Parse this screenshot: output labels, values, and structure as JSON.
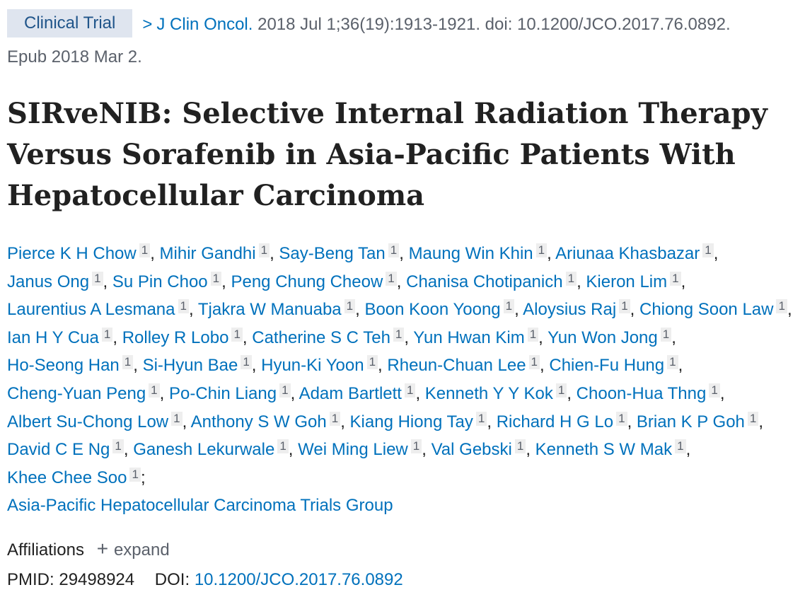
{
  "header": {
    "publication_type": "Clinical Trial",
    "arrow": ">",
    "journal": "J Clin Oncol.",
    "citation": " 2018 Jul 1;36(19):1913-1921. doi: 10.1200/JCO.2017.76.0892.",
    "epub": "Epub 2018 Mar 2."
  },
  "title": "SIRveNIB: Selective Internal Radiation Therapy Versus Sorafenib in Asia-Pacific Patients With Hepatocellular Carcinoma",
  "authors": [
    {
      "name": "Pierce K H Chow",
      "aff": "1"
    },
    {
      "name": "Mihir Gandhi",
      "aff": "1"
    },
    {
      "name": "Say-Beng Tan",
      "aff": "1"
    },
    {
      "name": "Maung Win Khin",
      "aff": "1"
    },
    {
      "name": "Ariunaa Khasbazar",
      "aff": "1"
    },
    {
      "name": "Janus Ong",
      "aff": "1"
    },
    {
      "name": "Su Pin Choo",
      "aff": "1"
    },
    {
      "name": "Peng Chung Cheow",
      "aff": "1"
    },
    {
      "name": "Chanisa Chotipanich",
      "aff": "1"
    },
    {
      "name": "Kieron Lim",
      "aff": "1"
    },
    {
      "name": "Laurentius A Lesmana",
      "aff": "1"
    },
    {
      "name": "Tjakra W Manuaba",
      "aff": "1"
    },
    {
      "name": "Boon Koon Yoong",
      "aff": "1"
    },
    {
      "name": "Aloysius Raj",
      "aff": "1"
    },
    {
      "name": "Chiong Soon Law",
      "aff": "1"
    },
    {
      "name": "Ian H Y Cua",
      "aff": "1"
    },
    {
      "name": "Rolley R Lobo",
      "aff": "1"
    },
    {
      "name": "Catherine S C Teh",
      "aff": "1"
    },
    {
      "name": "Yun Hwan Kim",
      "aff": "1"
    },
    {
      "name": "Yun Won Jong",
      "aff": "1"
    },
    {
      "name": "Ho-Seong Han",
      "aff": "1"
    },
    {
      "name": "Si-Hyun Bae",
      "aff": "1"
    },
    {
      "name": "Hyun-Ki Yoon",
      "aff": "1"
    },
    {
      "name": "Rheun-Chuan Lee",
      "aff": "1"
    },
    {
      "name": "Chien-Fu Hung",
      "aff": "1"
    },
    {
      "name": "Cheng-Yuan Peng",
      "aff": "1"
    },
    {
      "name": "Po-Chin Liang",
      "aff": "1"
    },
    {
      "name": "Adam Bartlett",
      "aff": "1"
    },
    {
      "name": "Kenneth Y Y Kok",
      "aff": "1"
    },
    {
      "name": "Choon-Hua Thng",
      "aff": "1"
    },
    {
      "name": "Albert Su-Chong Low",
      "aff": "1"
    },
    {
      "name": "Anthony S W Goh",
      "aff": "1"
    },
    {
      "name": "Kiang Hiong Tay",
      "aff": "1"
    },
    {
      "name": "Richard H G Lo",
      "aff": "1"
    },
    {
      "name": "Brian K P Goh",
      "aff": "1"
    },
    {
      "name": "David C E Ng",
      "aff": "1"
    },
    {
      "name": "Ganesh Lekurwale",
      "aff": "1"
    },
    {
      "name": "Wei Ming Liew",
      "aff": "1"
    },
    {
      "name": "Val Gebski",
      "aff": "1"
    },
    {
      "name": "Kenneth S W Mak",
      "aff": "1"
    },
    {
      "name": "Khee Chee Soo",
      "aff": "1"
    }
  ],
  "author_group": "Asia-Pacific Hepatocellular Carcinoma Trials Group",
  "affiliations": {
    "label": "Affiliations",
    "expand_icon": "plus-icon",
    "expand_glyph": "+",
    "expand_label": "expand"
  },
  "ids": {
    "pmid_label": "PMID:",
    "pmid": "29498924",
    "doi_label": "DOI:",
    "doi": "10.1200/JCO.2017.76.0892"
  },
  "colors": {
    "link": "#0071bc",
    "badge_bg": "#dfe5ef",
    "badge_text": "#20558a",
    "muted": "#5b616b",
    "text": "#212121"
  }
}
